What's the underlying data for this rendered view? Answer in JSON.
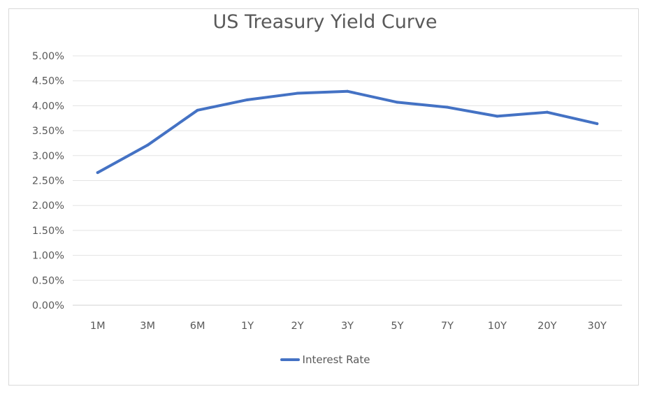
{
  "chart_data": {
    "type": "line",
    "title": "US Treasury Yield Curve",
    "categories": [
      "1M",
      "3M",
      "6M",
      "1Y",
      "2Y",
      "3Y",
      "5Y",
      "7Y",
      "10Y",
      "20Y",
      "30Y"
    ],
    "series": [
      {
        "name": "Interest Rate",
        "color": "#4472c4",
        "values": [
          2.66,
          3.21,
          3.91,
          4.12,
          4.25,
          4.29,
          4.07,
          3.97,
          3.79,
          3.87,
          3.64
        ]
      }
    ],
    "y_ticks": [
      "0.00%",
      "0.50%",
      "1.00%",
      "1.50%",
      "2.00%",
      "2.50%",
      "3.00%",
      "3.50%",
      "4.00%",
      "4.50%",
      "5.00%"
    ],
    "ylim": [
      0,
      5
    ],
    "grid": true,
    "legend_position": "bottom"
  }
}
